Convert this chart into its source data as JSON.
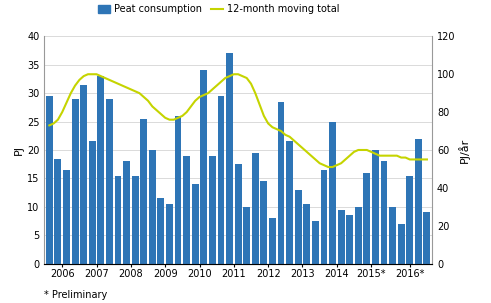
{
  "ylabel_left": "PJ",
  "ylabel_right": "PJ/år",
  "bar_color": "#2E75B6",
  "line_color": "#C5D400",
  "ylim_left": [
    0,
    40
  ],
  "ylim_right": [
    0,
    120
  ],
  "yticks_left": [
    0,
    5,
    10,
    15,
    20,
    25,
    30,
    35,
    40
  ],
  "yticks_right": [
    0,
    20,
    40,
    60,
    80,
    100,
    120
  ],
  "footnote": "* Preliminary",
  "legend_bar": "Peat consumption",
  "legend_line": "12-month moving total",
  "bar_heights": [
    29.5,
    18.5,
    16.5,
    29.0,
    31.5,
    21.5,
    33.0,
    29.0,
    15.5,
    18.0,
    15.5,
    25.5,
    20.0,
    11.5,
    10.5,
    26.0,
    19.0,
    14.0,
    34.0,
    19.0,
    29.5,
    37.0,
    17.5,
    10.0,
    19.5,
    14.5,
    8.0,
    28.5,
    21.5,
    13.0,
    10.5,
    7.5,
    16.5,
    25.0,
    9.5,
    8.5,
    10.0,
    16.0,
    20.0,
    18.0,
    10.0,
    7.0,
    15.5,
    22.0,
    9.0
  ],
  "group_sizes": [
    4,
    4,
    4,
    4,
    4,
    4,
    4,
    4,
    4,
    4,
    5
  ],
  "year_labels": [
    "2006",
    "2007",
    "2008",
    "2009",
    "2010",
    "2011",
    "2012",
    "2013",
    "2014",
    "2015*",
    "2016*"
  ],
  "line_x": [
    0.0,
    0.5,
    1.0,
    1.5,
    2.0,
    2.5,
    3.0,
    3.5,
    4.0,
    4.5,
    5.0,
    5.5,
    6.0,
    6.5,
    7.0,
    7.5,
    8.0,
    8.5,
    9.0,
    9.5,
    10.0,
    10.5,
    11.0,
    11.5,
    12.0,
    12.5,
    13.0,
    13.5,
    14.0,
    14.5,
    15.0,
    15.5,
    16.0,
    16.5,
    17.0,
    17.5,
    18.0,
    18.5,
    19.0,
    19.5,
    20.0,
    20.5,
    21.0,
    21.5,
    22.0,
    22.5,
    23.0,
    23.5,
    24.0,
    24.5,
    25.0,
    25.5,
    26.0,
    26.5,
    27.0,
    27.5,
    28.0,
    28.5,
    29.0,
    29.5,
    30.0,
    30.5,
    31.0,
    31.5,
    32.0,
    32.5,
    33.0,
    33.5,
    34.0,
    34.5,
    35.0,
    35.5,
    36.0,
    36.5,
    37.0,
    37.5,
    38.0,
    38.5,
    39.0,
    39.5,
    40.0,
    40.5,
    41.0,
    41.5,
    42.0,
    42.5,
    43.0,
    43.5,
    44.0
  ],
  "line_y": [
    73,
    74,
    76,
    80,
    85,
    90,
    94,
    97,
    99,
    100,
    100,
    100,
    99,
    98,
    97,
    96,
    95,
    94,
    93,
    92,
    91,
    90,
    88,
    86,
    83,
    81,
    79,
    77,
    76,
    76,
    77,
    78,
    80,
    83,
    86,
    88,
    89,
    90,
    92,
    94,
    96,
    98,
    99,
    100,
    100,
    99,
    98,
    95,
    90,
    84,
    78,
    74,
    72,
    71,
    70,
    68,
    67,
    65,
    63,
    61,
    59,
    57,
    55,
    53,
    52,
    51,
    51,
    52,
    53,
    55,
    57,
    59,
    60,
    60,
    60,
    59,
    58,
    57,
    57,
    57,
    57,
    57,
    56,
    56,
    55,
    55,
    55,
    55,
    55
  ]
}
